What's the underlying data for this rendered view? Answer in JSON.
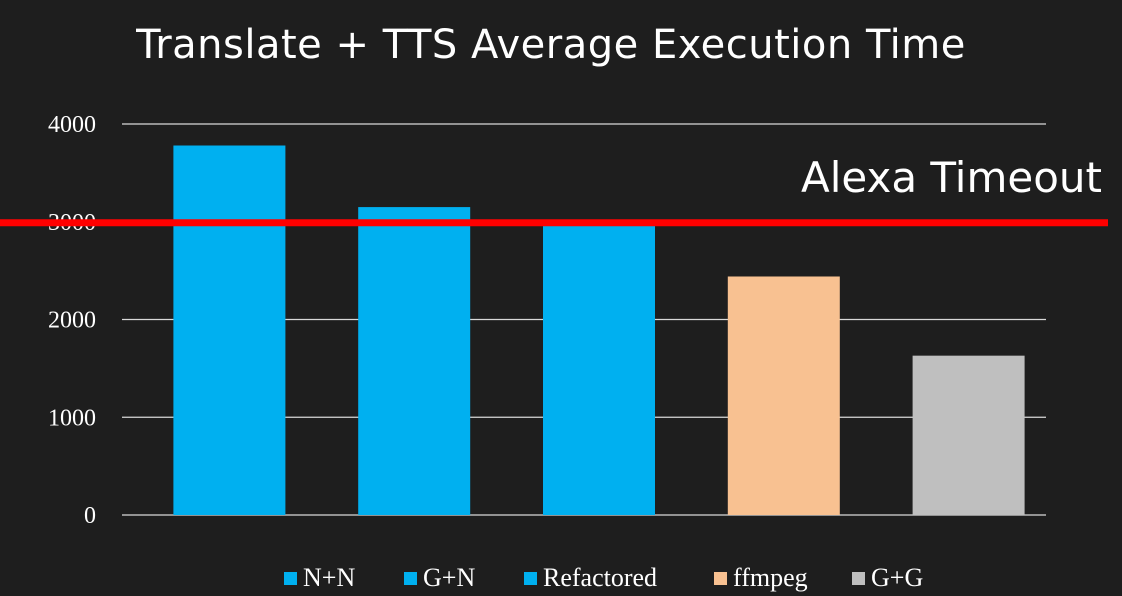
{
  "chart_data": {
    "type": "bar",
    "title": "Translate + TTS Average Execution Time",
    "categories": [
      "N+N",
      "G+N",
      "Refactored",
      "ffmpeg",
      "G+G"
    ],
    "values": [
      3780,
      3150,
      2960,
      2440,
      1630
    ],
    "colors": [
      "#00b0f0",
      "#00b0f0",
      "#00b0f0",
      "#f8c191",
      "#bfbfbf"
    ],
    "xlabel": "",
    "ylabel": "",
    "ylim": [
      0,
      4000
    ],
    "yticks": [
      0,
      1000,
      2000,
      3000,
      4000
    ],
    "grid": true,
    "legend_position": "bottom",
    "reference_line": {
      "value": 3000,
      "label": "Alexa Timeout",
      "color": "#ff0000"
    }
  }
}
